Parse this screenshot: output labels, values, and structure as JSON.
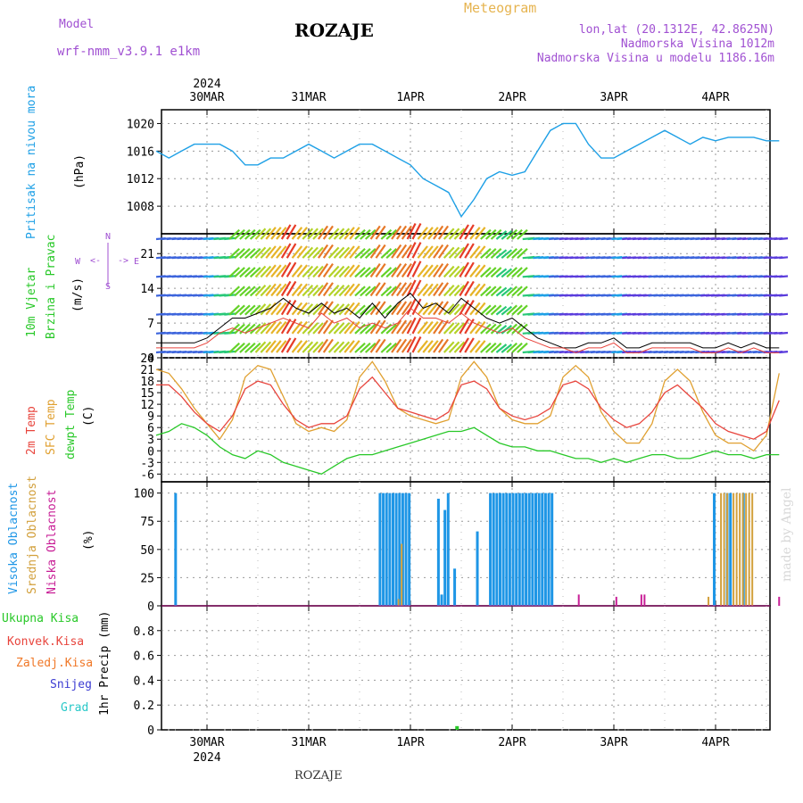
{
  "header": {
    "model_label": "Model",
    "model_name": "wrf-nmm_v3.9.1 e1km",
    "location": "ROZAJE",
    "meteogram": "Meteogram",
    "lonlat": "lon,lat (20.1312E, 42.8625N)",
    "altitude": "Nadmorska Visina 1012m",
    "model_altitude": "Nadmorska Visina u modelu 1186.16m"
  },
  "footer": {
    "location": "ROZAJE",
    "made_by": "made by Angel"
  },
  "colors": {
    "pressure": "#1ea0e6",
    "temp2m": "#e8443c",
    "sfc_temp": "#e0a030",
    "dewpt": "#28c828",
    "high_cloud": "#1e96e6",
    "mid_cloud": "#d2a03c",
    "low_cloud": "#c81e96",
    "total_precip": "#28c828",
    "konv": "#e8443c",
    "frz": "#f07828",
    "snow": "#3c3cd2",
    "grad": "#28c8c8"
  },
  "chart_data": [
    {
      "type": "line",
      "name": "pressure",
      "ylabel": [
        "Pritisak na nivou mora",
        "(hPa)"
      ],
      "ylim": [
        1004,
        1022
      ],
      "yticks": [
        1008,
        1012,
        1016,
        1020
      ],
      "x_days": [
        "30MAR",
        "31MAR",
        "1APR",
        "2APR",
        "3APR",
        "4APR"
      ],
      "year": "2024",
      "x_hours": [
        0,
        3,
        6,
        9,
        12,
        15,
        18,
        21,
        24,
        27,
        30,
        33,
        36,
        39,
        42,
        45,
        48,
        51,
        54,
        57,
        60,
        63,
        66,
        69,
        72,
        75,
        78,
        81,
        84,
        87,
        90,
        93,
        96,
        99,
        102,
        105,
        108,
        111,
        114,
        117,
        120,
        123,
        126,
        129,
        132,
        135,
        138,
        141,
        144,
        147
      ],
      "series": [
        {
          "values": [
            1016,
            1015,
            1016,
            1017,
            1017,
            1017,
            1016,
            1014,
            1014,
            1015,
            1015,
            1016,
            1017,
            1016,
            1015,
            1016,
            1017,
            1017,
            1016,
            1015,
            1014,
            1012,
            1011,
            1010,
            1006.5,
            1009,
            1012,
            1013,
            1012.5,
            1013,
            1016,
            1019,
            1020,
            1020,
            1017,
            1015,
            1015,
            1016,
            1017,
            1018,
            1019,
            1018,
            1017,
            1018,
            1017.5,
            1018,
            1018,
            1018,
            1017.5,
            1017.5
          ]
        }
      ]
    },
    {
      "type": "line",
      "name": "wind",
      "ylabel": [
        "10m Vjetar",
        "Brzina i Pravac",
        "(m/s)"
      ],
      "compass": [
        "N",
        "E",
        "S",
        "W",
        "<-",
        "->"
      ],
      "ylim": [
        0,
        25
      ],
      "yticks": [
        0,
        7,
        14,
        21
      ],
      "series": [
        {
          "name": "speed",
          "values": [
            3,
            3,
            3,
            3,
            4,
            6,
            8,
            8,
            9,
            10,
            12,
            10,
            9,
            11,
            9,
            10,
            8,
            11,
            8,
            11,
            13,
            10,
            11,
            9,
            12,
            10,
            8,
            7,
            8,
            6,
            4,
            3,
            2,
            2,
            3,
            3,
            4,
            2,
            2,
            3,
            3,
            3,
            3,
            2,
            2,
            3,
            2,
            3,
            2,
            2
          ]
        },
        {
          "name": "gust",
          "values": [
            2,
            2,
            2,
            2,
            3,
            5,
            6,
            5,
            6,
            7,
            8,
            7,
            6,
            9,
            7,
            8,
            6,
            7,
            6,
            7,
            10,
            8,
            8,
            7,
            9,
            7,
            6,
            5,
            6,
            4,
            3,
            2,
            2,
            1,
            2,
            2,
            3,
            1,
            1,
            2,
            2,
            2,
            2,
            1,
            1,
            2,
            1,
            2,
            1,
            1
          ]
        }
      ]
    },
    {
      "type": "line",
      "name": "temperature",
      "ylabel": [
        "2m Temp",
        "SFC Temp",
        "dewpt Temp",
        "(C)"
      ],
      "ylim": [
        -8,
        24
      ],
      "yticks": [
        -6,
        -3,
        0,
        3,
        6,
        9,
        12,
        15,
        18,
        21,
        24
      ],
      "series": [
        {
          "name": "2m Temp",
          "values": [
            17,
            17,
            14,
            10,
            7,
            5,
            9,
            16,
            18,
            17,
            12,
            8,
            6,
            7,
            7,
            9,
            16,
            19,
            15,
            11,
            10,
            9,
            8,
            10,
            17,
            18,
            16,
            11,
            9,
            8,
            9,
            11,
            17,
            18,
            16,
            11,
            8,
            6,
            7,
            10,
            15,
            17,
            14,
            11,
            7,
            5,
            4,
            3,
            5,
            13
          ]
        },
        {
          "name": "SFC Temp",
          "values": [
            21,
            20,
            16,
            11,
            7,
            3,
            8,
            19,
            22,
            21,
            14,
            7,
            5,
            6,
            5,
            8,
            19,
            23,
            18,
            11,
            9,
            8,
            7,
            8,
            19,
            23,
            19,
            11,
            8,
            7,
            7,
            9,
            19,
            22,
            19,
            10,
            5,
            2,
            2,
            7,
            18,
            21,
            18,
            10,
            4,
            2,
            2,
            0,
            4,
            20
          ]
        },
        {
          "name": "dewpt Temp",
          "values": [
            4,
            5,
            7,
            6,
            4,
            1,
            -1,
            -2,
            0,
            -1,
            -3,
            -4,
            -5,
            -6,
            -4,
            -2,
            -1,
            -1,
            0,
            1,
            2,
            3,
            4,
            5,
            5,
            6,
            4,
            2,
            1,
            1,
            0,
            0,
            -1,
            -2,
            -2,
            -3,
            -2,
            -3,
            -2,
            -1,
            -1,
            -2,
            -2,
            -1,
            0,
            -1,
            -1,
            -2,
            -1,
            -1
          ]
        }
      ]
    },
    {
      "type": "bar",
      "name": "clouds",
      "ylabel": [
        "Visoka Oblacnost",
        "Srednja Oblacnost",
        "Niska Oblacnost",
        "(%)"
      ],
      "ylim": [
        0,
        110
      ],
      "yticks": [
        0,
        25,
        50,
        75,
        100
      ],
      "series": [
        {
          "name": "Visoka Oblacnost",
          "values": [
            0,
            0,
            0,
            0,
            0,
            0,
            100,
            0,
            0,
            0,
            0,
            0,
            0,
            0,
            0,
            0,
            0,
            0,
            0,
            0,
            0,
            0,
            0,
            0,
            0,
            0,
            0,
            0,
            0,
            0,
            0,
            0,
            0,
            0,
            0,
            0,
            0,
            0,
            0,
            0,
            0,
            0,
            0,
            0,
            0,
            0,
            0,
            0,
            0,
            0,
            0,
            0,
            0,
            0,
            0,
            0,
            0,
            0,
            0,
            0,
            0,
            0,
            0,
            0,
            0,
            0,
            0,
            0,
            0,
            100,
            100,
            100,
            100,
            100,
            100,
            100,
            100,
            100,
            100,
            0,
            0,
            0,
            0,
            0,
            0,
            0,
            0,
            95,
            10,
            85,
            100,
            0,
            33,
            0,
            0,
            0,
            0,
            0,
            0,
            66,
            0,
            0,
            0,
            100,
            100,
            100,
            100,
            100,
            100,
            100,
            100,
            100,
            100,
            100,
            100,
            100,
            100,
            100,
            100,
            100,
            100,
            100,
            100,
            0,
            0,
            0,
            0,
            0,
            0,
            0,
            0,
            0,
            0,
            0,
            0,
            0,
            0,
            0,
            0,
            0,
            0,
            0,
            0,
            0,
            0,
            0,
            0,
            0,
            0,
            0,
            0,
            0,
            0,
            0,
            0,
            0,
            0,
            0,
            0,
            0,
            0,
            0,
            0,
            0,
            0,
            0,
            0,
            0,
            0,
            0,
            0,
            0,
            100,
            0,
            0,
            0,
            100,
            100,
            0,
            0,
            0,
            100,
            0,
            0,
            0,
            0,
            0,
            0,
            0,
            0,
            0,
            0,
            0
          ]
        },
        {
          "name": "Srednja Oblacnost",
          "values": [
            0,
            0,
            0,
            0,
            0,
            0,
            0,
            0,
            0,
            0,
            0,
            0,
            0,
            0,
            0,
            0,
            0,
            0,
            0,
            0,
            0,
            0,
            0,
            0,
            0,
            0,
            0,
            0,
            0,
            0,
            0,
            0,
            0,
            0,
            0,
            0,
            0,
            0,
            0,
            0,
            0,
            0,
            0,
            0,
            0,
            0,
            0,
            0,
            0,
            0,
            0,
            0,
            0,
            0,
            0,
            0,
            0,
            0,
            0,
            0,
            0,
            0,
            0,
            0,
            0,
            0,
            0,
            0,
            0,
            0,
            0,
            0,
            0,
            0,
            0,
            0,
            0,
            6,
            55,
            0,
            0,
            0,
            0,
            0,
            0,
            0,
            0,
            0,
            0,
            0,
            0,
            0,
            0,
            0,
            0,
            0,
            0,
            0,
            0,
            0,
            0,
            0,
            0,
            0,
            0,
            0,
            0,
            0,
            0,
            0,
            0,
            0,
            0,
            0,
            0,
            0,
            0,
            0,
            0,
            0,
            0,
            0,
            0,
            0,
            0,
            0,
            0,
            0,
            0,
            0,
            0,
            0,
            0,
            0,
            0,
            0,
            0,
            0,
            0,
            0,
            0,
            0,
            0,
            0,
            0,
            0,
            0,
            0,
            0,
            0,
            0,
            0,
            0,
            0,
            0,
            0,
            0,
            0,
            0,
            0,
            0,
            0,
            0,
            0,
            0,
            0,
            0,
            0,
            0,
            0,
            0,
            0,
            0,
            0,
            0,
            0,
            8,
            0,
            0,
            0,
            100,
            100,
            100,
            0,
            100,
            100,
            100,
            100,
            100,
            100,
            100,
            0,
            0,
            0,
            0,
            0,
            0,
            0,
            0,
            0
          ]
        },
        {
          "name": "Niska Oblacnost",
          "values": [
            0,
            0,
            0,
            0,
            0,
            0,
            0,
            0,
            0,
            0,
            0,
            0,
            0,
            0,
            0,
            0,
            0,
            0,
            0,
            0,
            0,
            0,
            0,
            0,
            0,
            0,
            0,
            0,
            0,
            0,
            0,
            0,
            0,
            0,
            0,
            0,
            0,
            0,
            0,
            0,
            0,
            0,
            0,
            0,
            0,
            0,
            0,
            0,
            0,
            0,
            0,
            0,
            0,
            0,
            0,
            0,
            0,
            0,
            0,
            0,
            0,
            0,
            0,
            0,
            0,
            0,
            0,
            0,
            0,
            0,
            0,
            0,
            0,
            0,
            0,
            0,
            0,
            0,
            0,
            0,
            0,
            0,
            0,
            0,
            0,
            0,
            0,
            0,
            0,
            0,
            0,
            0,
            0,
            0,
            0,
            0,
            0,
            0,
            0,
            0,
            0,
            0,
            0,
            0,
            0,
            0,
            0,
            0,
            0,
            0,
            0,
            0,
            0,
            0,
            0,
            0,
            0,
            0,
            0,
            0,
            0,
            0,
            0,
            0,
            0,
            0,
            0,
            0,
            0,
            0,
            0,
            0,
            0,
            0,
            0,
            10,
            0,
            0,
            0,
            0,
            0,
            0,
            0,
            0,
            0,
            0,
            0,
            8,
            0,
            0,
            0,
            0,
            0,
            0,
            0,
            10,
            10,
            0,
            0,
            0,
            0,
            0,
            0,
            0,
            0,
            0,
            0,
            0,
            0,
            0,
            0,
            0,
            0,
            0,
            0,
            0,
            0,
            0,
            0,
            0,
            0,
            0,
            0,
            0,
            0,
            0,
            0,
            0,
            0,
            0,
            0,
            0,
            0,
            0,
            0,
            0,
            0,
            0,
            0,
            8
          ]
        }
      ]
    },
    {
      "type": "bar",
      "name": "precip",
      "ylabel": [
        "1hr Precip (mm)"
      ],
      "legend": [
        "Ukupna Kisa",
        "Konvek.Kisa",
        "Zaledj.Kisa",
        "Snijeg",
        "Grad"
      ],
      "ylim": [
        0,
        1
      ],
      "yticks": [
        0,
        0.2,
        0.4,
        0.6,
        0.8
      ],
      "series": [
        {
          "name": "Ukupna Kisa",
          "x_hour": 71,
          "values": [
            0.03
          ]
        }
      ]
    }
  ]
}
